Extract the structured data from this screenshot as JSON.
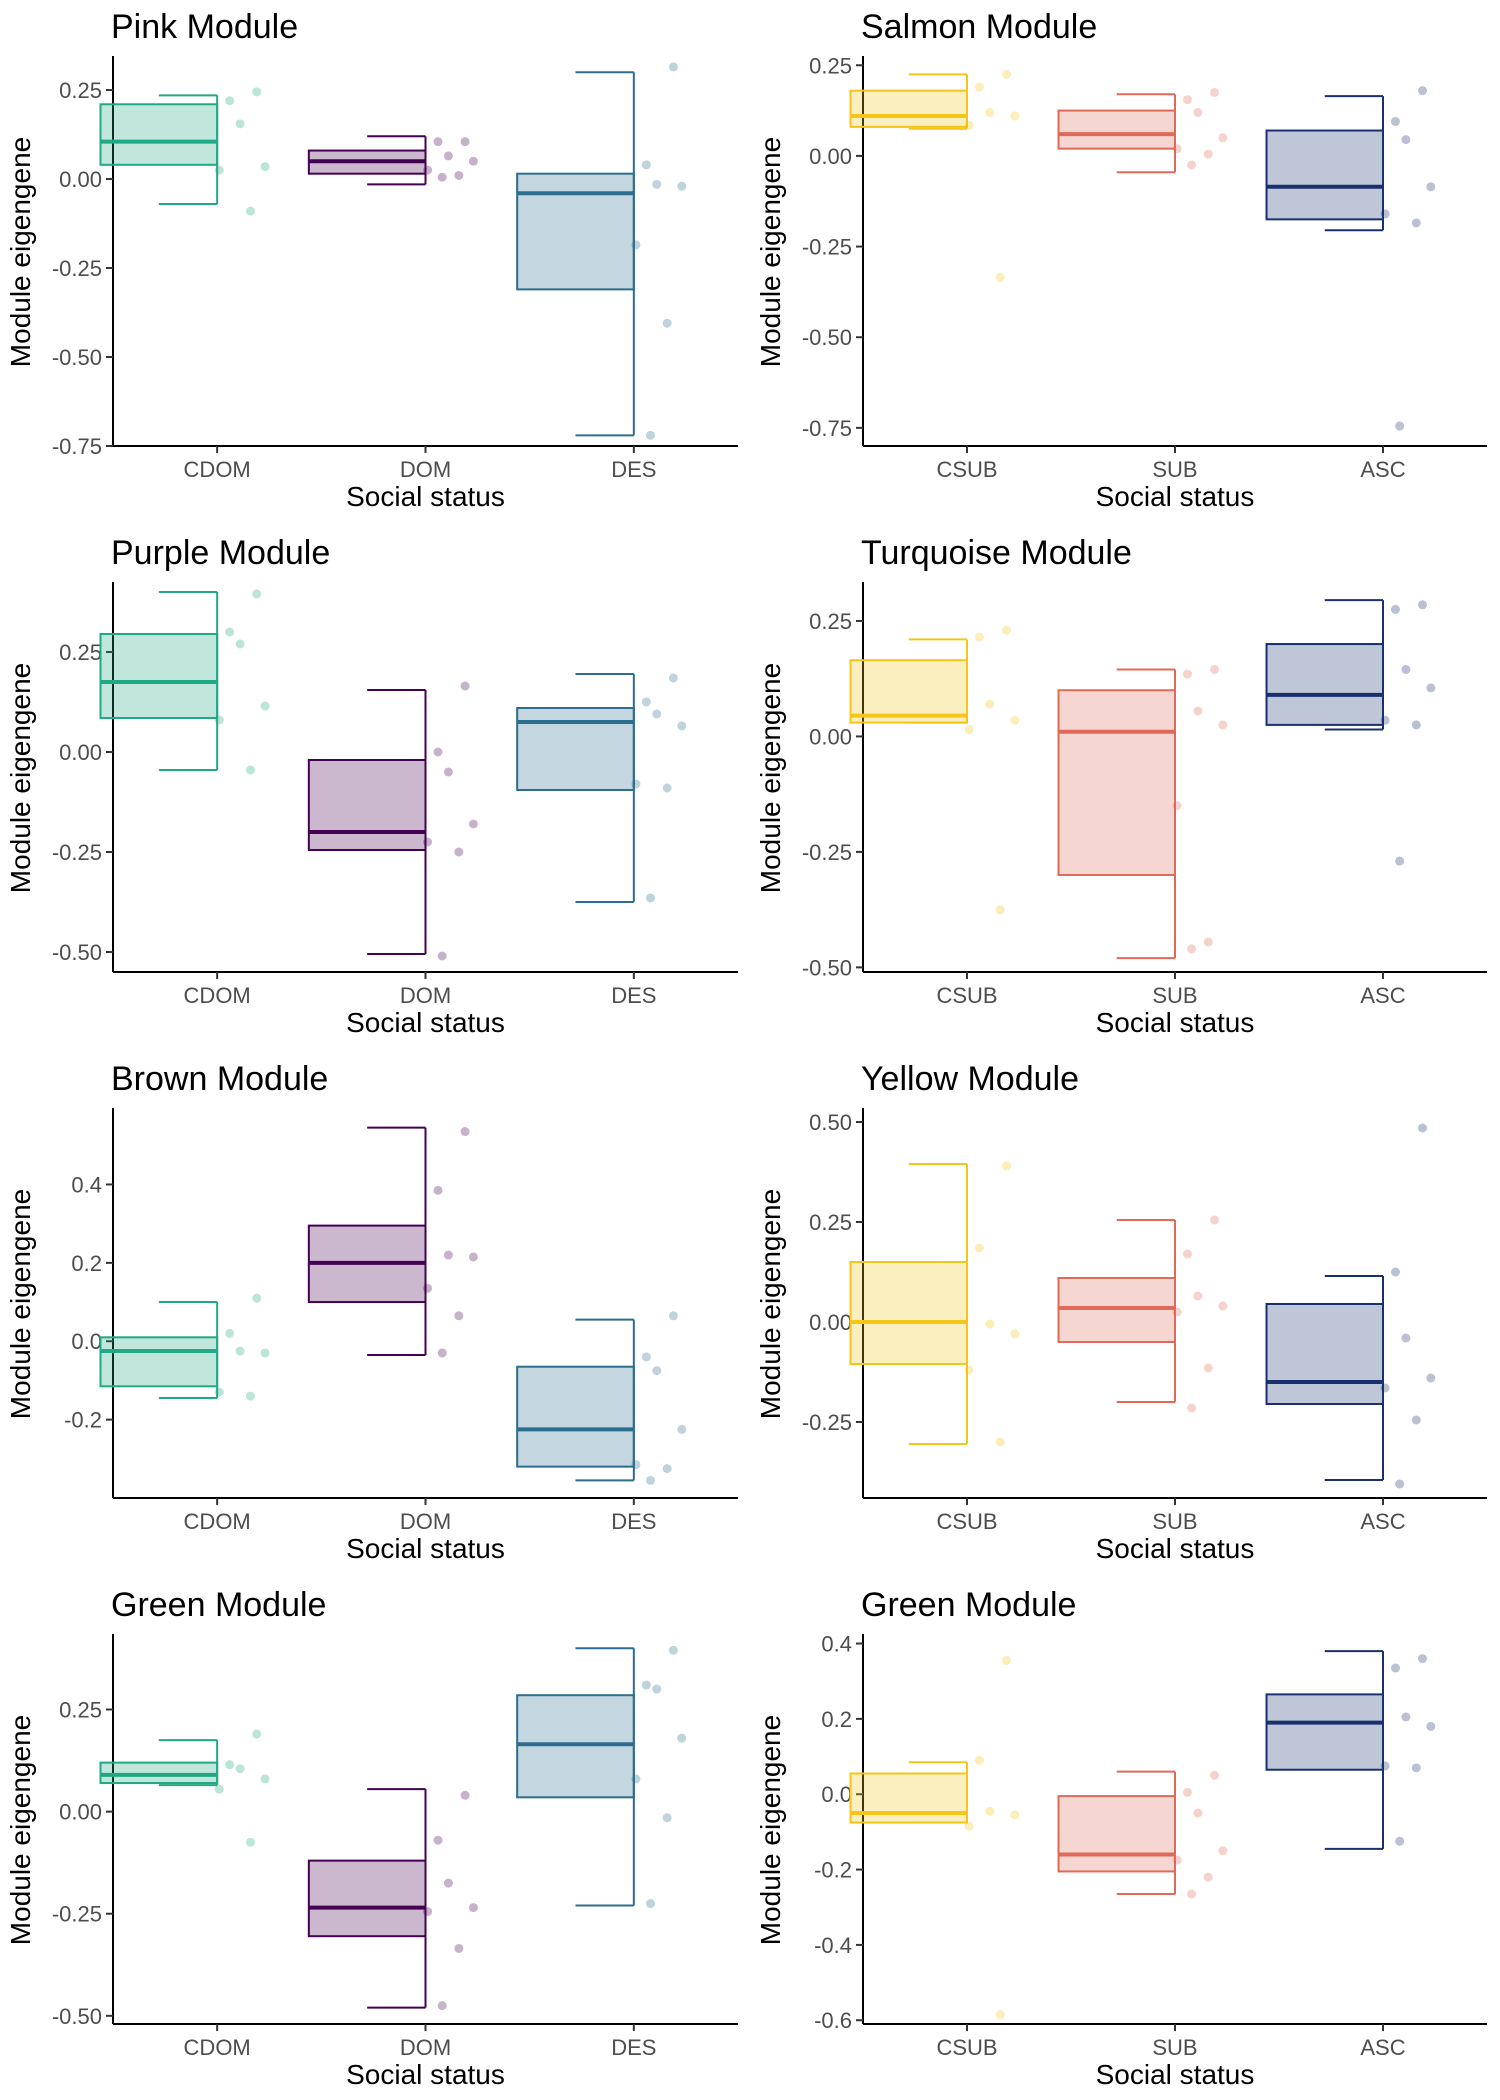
{
  "figure": {
    "colors": {
      "axis": "#000000",
      "tick_text": "#4d4d4d"
    }
  },
  "chart_data": [
    {
      "type": "box",
      "title": "Pink Module",
      "xlabel": "Social status",
      "ylabel": "Module eigengene",
      "ylim": [
        -0.75,
        0.34
      ],
      "yticks": [
        -0.75,
        -0.5,
        -0.25,
        0.0,
        0.25
      ],
      "ytick_labels": [
        "-0.75",
        "-0.50",
        "-0.25",
        "0.00",
        "0.25"
      ],
      "categories": [
        "CDOM",
        "DOM",
        "DES"
      ],
      "colors": [
        "#21a884",
        "#440154",
        "#2c6e8e"
      ],
      "boxes": [
        {
          "category": "CDOM",
          "min": -0.07,
          "q1": 0.04,
          "median": 0.105,
          "q3": 0.21,
          "max": 0.235
        },
        {
          "category": "DOM",
          "min": -0.015,
          "q1": 0.015,
          "median": 0.05,
          "q3": 0.08,
          "max": 0.12
        },
        {
          "category": "DES",
          "min": -0.72,
          "q1": -0.31,
          "median": -0.04,
          "q3": 0.015,
          "max": 0.3
        }
      ],
      "points": [
        [
          0.245,
          0.22,
          0.155,
          0.035,
          0.025,
          -0.09
        ],
        [
          0.105,
          0.105,
          0.065,
          0.05,
          0.025,
          0.01,
          0.005
        ],
        [
          0.315,
          0.04,
          -0.015,
          -0.02,
          -0.185,
          -0.405,
          -0.72
        ]
      ]
    },
    {
      "type": "box",
      "title": "Salmon Module",
      "xlabel": "Social status",
      "ylabel": "Module eigengene",
      "ylim": [
        -0.8,
        0.27
      ],
      "yticks": [
        -0.75,
        -0.5,
        -0.25,
        0.0,
        0.25
      ],
      "ytick_labels": [
        "-0.75",
        "-0.50",
        "-0.25",
        "0.00",
        "0.25"
      ],
      "categories": [
        "CSUB",
        "SUB",
        "ASC"
      ],
      "colors": [
        "#f5c518",
        "#e06a5a",
        "#18316e"
      ],
      "boxes": [
        {
          "category": "CSUB",
          "min": 0.075,
          "q1": 0.08,
          "median": 0.11,
          "q3": 0.18,
          "max": 0.225
        },
        {
          "category": "SUB",
          "min": -0.045,
          "q1": 0.02,
          "median": 0.06,
          "q3": 0.125,
          "max": 0.17
        },
        {
          "category": "ASC",
          "min": -0.205,
          "q1": -0.175,
          "median": -0.085,
          "q3": 0.07,
          "max": 0.165
        }
      ],
      "points": [
        [
          0.225,
          0.19,
          0.12,
          0.11,
          0.085,
          -0.335
        ],
        [
          0.175,
          0.155,
          0.12,
          0.05,
          0.02,
          0.005,
          -0.025
        ],
        [
          0.18,
          0.095,
          0.045,
          -0.085,
          -0.16,
          -0.185,
          -0.745
        ]
      ]
    },
    {
      "type": "box",
      "title": "Purple Module",
      "xlabel": "Social status",
      "ylabel": "Module eigengene",
      "ylim": [
        -0.55,
        0.42
      ],
      "yticks": [
        -0.5,
        -0.25,
        0.0,
        0.25
      ],
      "ytick_labels": [
        "-0.50",
        "-0.25",
        "0.00",
        "0.25"
      ],
      "categories": [
        "CDOM",
        "DOM",
        "DES"
      ],
      "colors": [
        "#21a884",
        "#440154",
        "#2c6e8e"
      ],
      "boxes": [
        {
          "category": "CDOM",
          "min": -0.045,
          "q1": 0.085,
          "median": 0.175,
          "q3": 0.295,
          "max": 0.4
        },
        {
          "category": "DOM",
          "min": -0.505,
          "q1": -0.245,
          "median": -0.2,
          "q3": -0.02,
          "max": 0.155
        },
        {
          "category": "DES",
          "min": -0.375,
          "q1": -0.095,
          "median": 0.075,
          "q3": 0.11,
          "max": 0.195
        }
      ],
      "points": [
        [
          0.395,
          0.3,
          0.27,
          0.115,
          0.08,
          -0.045
        ],
        [
          0.165,
          0.0,
          -0.05,
          -0.18,
          -0.225,
          -0.25,
          -0.51
        ],
        [
          0.185,
          0.125,
          0.095,
          0.065,
          -0.08,
          -0.09,
          -0.365
        ]
      ]
    },
    {
      "type": "box",
      "title": "Turquoise Module",
      "xlabel": "Social status",
      "ylabel": "Module eigengene",
      "ylim": [
        -0.51,
        0.33
      ],
      "yticks": [
        -0.5,
        -0.25,
        0.0,
        0.25
      ],
      "ytick_labels": [
        "-0.50",
        "-0.25",
        "0.00",
        "0.25"
      ],
      "categories": [
        "CSUB",
        "SUB",
        "ASC"
      ],
      "colors": [
        "#f5c518",
        "#e06a5a",
        "#18316e"
      ],
      "boxes": [
        {
          "category": "CSUB",
          "min": 0.03,
          "q1": 0.03,
          "median": 0.045,
          "q3": 0.165,
          "max": 0.21
        },
        {
          "category": "SUB",
          "min": -0.48,
          "q1": -0.3,
          "median": 0.01,
          "q3": 0.1,
          "max": 0.145
        },
        {
          "category": "ASC",
          "min": 0.015,
          "q1": 0.025,
          "median": 0.09,
          "q3": 0.2,
          "max": 0.295
        }
      ],
      "points": [
        [
          0.23,
          0.215,
          0.07,
          0.035,
          0.015,
          -0.375
        ],
        [
          0.145,
          0.135,
          0.055,
          0.025,
          -0.15,
          -0.445,
          -0.46
        ],
        [
          0.285,
          0.275,
          0.145,
          0.105,
          0.035,
          0.025,
          -0.27
        ]
      ]
    },
    {
      "type": "box",
      "title": "Brown Module",
      "xlabel": "Social status",
      "ylabel": "Module eigengene",
      "ylim": [
        -0.4,
        0.59
      ],
      "yticks": [
        -0.2,
        0.0,
        0.2,
        0.4
      ],
      "ytick_labels": [
        "-0.2",
        "0.0",
        "0.2",
        "0.4"
      ],
      "categories": [
        "CDOM",
        "DOM",
        "DES"
      ],
      "colors": [
        "#21a884",
        "#440154",
        "#2c6e8e"
      ],
      "boxes": [
        {
          "category": "CDOM",
          "min": -0.145,
          "q1": -0.115,
          "median": -0.025,
          "q3": 0.01,
          "max": 0.1
        },
        {
          "category": "DOM",
          "min": -0.035,
          "q1": 0.1,
          "median": 0.2,
          "q3": 0.295,
          "max": 0.545
        },
        {
          "category": "DES",
          "min": -0.355,
          "q1": -0.32,
          "median": -0.225,
          "q3": -0.065,
          "max": 0.055
        }
      ],
      "points": [
        [
          0.11,
          0.02,
          -0.025,
          -0.03,
          -0.13,
          -0.14
        ],
        [
          0.535,
          0.385,
          0.22,
          0.215,
          0.135,
          0.065,
          -0.03
        ],
        [
          0.065,
          -0.04,
          -0.075,
          -0.225,
          -0.315,
          -0.325,
          -0.355
        ]
      ]
    },
    {
      "type": "box",
      "title": "Yellow Module",
      "xlabel": "Social status",
      "ylabel": "Module eigengene",
      "ylim": [
        -0.44,
        0.53
      ],
      "yticks": [
        -0.25,
        0.0,
        0.25,
        0.5
      ],
      "ytick_labels": [
        "-0.25",
        "0.00",
        "0.25",
        "0.50"
      ],
      "categories": [
        "CSUB",
        "SUB",
        "ASC"
      ],
      "colors": [
        "#f5c518",
        "#e06a5a",
        "#18316e"
      ],
      "boxes": [
        {
          "category": "CSUB",
          "min": -0.305,
          "q1": -0.105,
          "median": 0.0,
          "q3": 0.15,
          "max": 0.395
        },
        {
          "category": "SUB",
          "min": -0.2,
          "q1": -0.05,
          "median": 0.035,
          "q3": 0.11,
          "max": 0.255
        },
        {
          "category": "ASC",
          "min": -0.395,
          "q1": -0.205,
          "median": -0.15,
          "q3": 0.045,
          "max": 0.115
        }
      ],
      "points": [
        [
          0.39,
          0.185,
          -0.005,
          -0.03,
          -0.12,
          -0.3
        ],
        [
          0.255,
          0.17,
          0.065,
          0.04,
          0.025,
          -0.115,
          -0.215
        ],
        [
          0.485,
          0.125,
          -0.04,
          -0.14,
          -0.165,
          -0.245,
          -0.405
        ]
      ]
    },
    {
      "type": "box",
      "title": "Green Module",
      "xlabel": "Social status",
      "ylabel": "Module eigengene",
      "ylim": [
        -0.52,
        0.43
      ],
      "yticks": [
        -0.5,
        -0.25,
        0.0,
        0.25
      ],
      "ytick_labels": [
        "-0.50",
        "-0.25",
        "0.00",
        "0.25"
      ],
      "categories": [
        "CDOM",
        "DOM",
        "DES"
      ],
      "colors": [
        "#21a884",
        "#440154",
        "#2c6e8e"
      ],
      "boxes": [
        {
          "category": "CDOM",
          "min": 0.065,
          "q1": 0.07,
          "median": 0.09,
          "q3": 0.12,
          "max": 0.175
        },
        {
          "category": "DOM",
          "min": -0.48,
          "q1": -0.305,
          "median": -0.235,
          "q3": -0.12,
          "max": 0.055
        },
        {
          "category": "DES",
          "min": -0.23,
          "q1": 0.035,
          "median": 0.165,
          "q3": 0.285,
          "max": 0.4
        }
      ],
      "points": [
        [
          0.19,
          0.115,
          0.105,
          0.08,
          0.055,
          -0.075
        ],
        [
          0.04,
          -0.07,
          -0.175,
          -0.235,
          -0.245,
          -0.335,
          -0.475
        ],
        [
          0.395,
          0.31,
          0.3,
          0.18,
          0.08,
          -0.015,
          -0.225
        ]
      ]
    },
    {
      "type": "box",
      "title": "Green Module",
      "xlabel": "Social status",
      "ylabel": "Module eigengene",
      "ylim": [
        -0.61,
        0.42
      ],
      "yticks": [
        -0.6,
        -0.4,
        -0.2,
        0.0,
        0.2,
        0.4
      ],
      "ytick_labels": [
        "-0.6",
        "-0.4",
        "-0.2",
        "0.0",
        "0.2",
        "0.4"
      ],
      "categories": [
        "CSUB",
        "SUB",
        "ASC"
      ],
      "colors": [
        "#f5c518",
        "#e06a5a",
        "#18316e"
      ],
      "boxes": [
        {
          "category": "CSUB",
          "min": -0.075,
          "q1": -0.075,
          "median": -0.05,
          "q3": 0.055,
          "max": 0.085
        },
        {
          "category": "SUB",
          "min": -0.265,
          "q1": -0.205,
          "median": -0.16,
          "q3": -0.005,
          "max": 0.06
        },
        {
          "category": "ASC",
          "min": -0.145,
          "q1": 0.065,
          "median": 0.19,
          "q3": 0.265,
          "max": 0.38
        }
      ],
      "points": [
        [
          0.355,
          0.09,
          -0.045,
          -0.055,
          -0.085,
          -0.585
        ],
        [
          0.05,
          0.005,
          -0.05,
          -0.15,
          -0.175,
          -0.22,
          -0.265
        ],
        [
          0.36,
          0.335,
          0.205,
          0.18,
          0.075,
          0.07,
          -0.125
        ]
      ]
    }
  ]
}
